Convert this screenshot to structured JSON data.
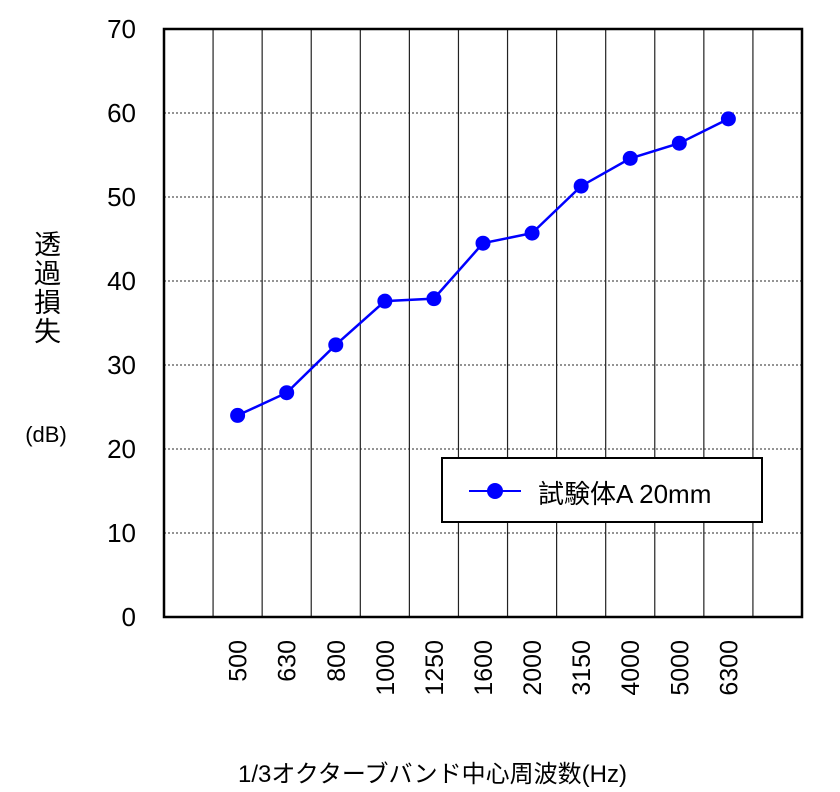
{
  "chart_data": {
    "type": "line",
    "title": "",
    "xlabel": "1/3オクターブバンド中心周波数(Hz)",
    "ylabel": "透過損失",
    "ylabel_unit": "(dB)",
    "categories": [
      "500",
      "630",
      "800",
      "1000",
      "1250",
      "1600",
      "2000",
      "3150",
      "4000",
      "5000",
      "6300"
    ],
    "series": [
      {
        "name": "試験体A 20mm",
        "color": "#0000ff",
        "marker": "circle",
        "values": [
          24.0,
          26.7,
          32.4,
          37.6,
          37.9,
          44.5,
          45.7,
          51.3,
          54.6,
          56.4,
          59.3
        ]
      }
    ],
    "ylim": [
      0,
      70
    ],
    "yticks": [
      0,
      10,
      20,
      30,
      40,
      50,
      60,
      70
    ],
    "grid": {
      "horizontal": "dotted",
      "vertical": "solid"
    },
    "legend_position": "lower right inside"
  },
  "labels": {
    "ylabel": "透過損失",
    "yunit": "(dB)",
    "xlabel": "1/3オクターブバンド中心周波数(Hz)",
    "legend": "試験体A 20mm"
  }
}
